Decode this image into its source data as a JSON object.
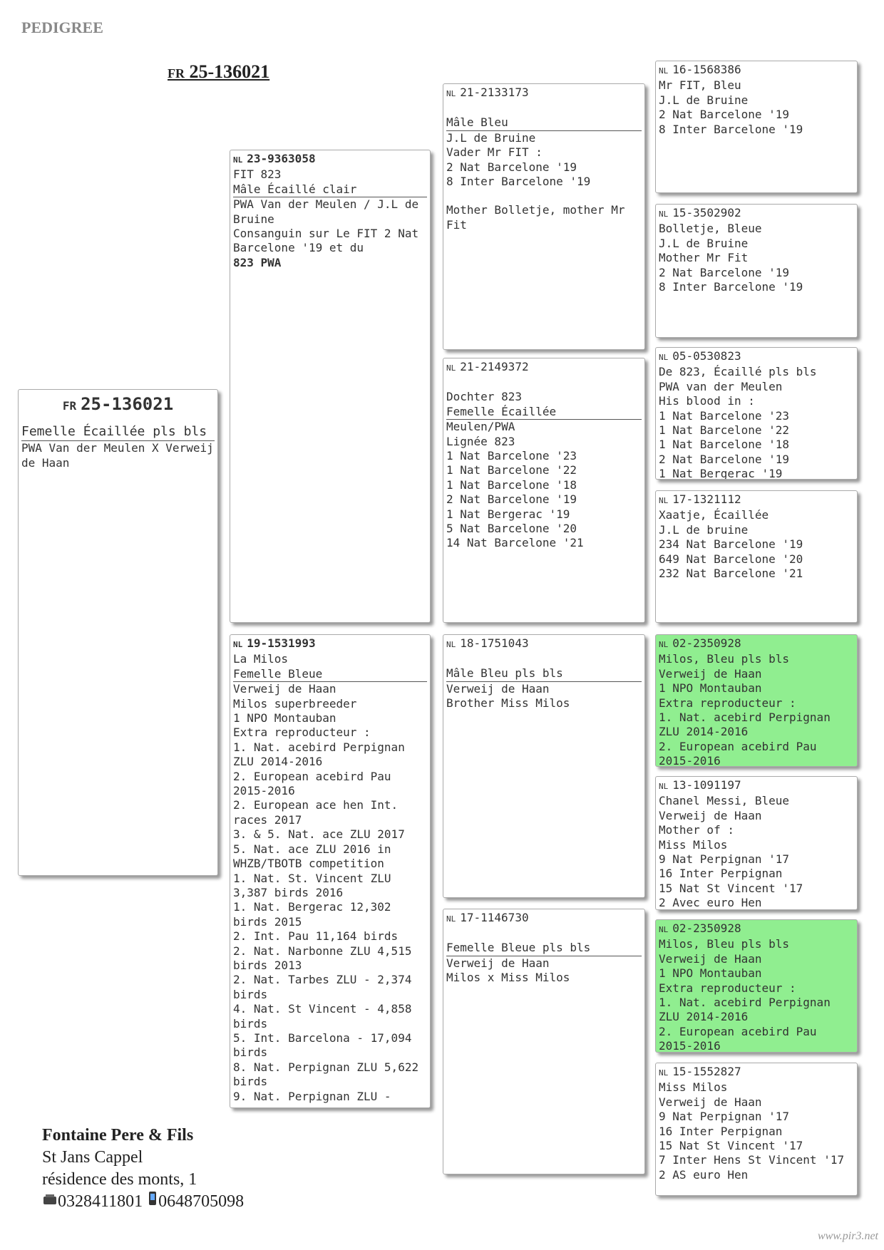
{
  "page_title": "PEDIGREE",
  "subject_heading": {
    "country": "FR",
    "ring": "25-136021"
  },
  "subject": {
    "country": "FR",
    "ring": "25-136021",
    "header": [
      "Femelle Écaillée pls bls"
    ],
    "details": [
      "PWA Van der Meulen X Verweij de Haan"
    ]
  },
  "parents": [
    {
      "country": "NL",
      "ring": "23-9363058",
      "header": [
        "FIT 823",
        "Mâle Écaillé clair"
      ],
      "details": [
        "PWA Van der Meulen / J.L de Bruine",
        "Consanguin sur Le FIT 2 Nat Barcelone '19 et du"
      ],
      "emphasis": "823 PWA"
    },
    {
      "country": "NL",
      "ring": "19-1531993",
      "header": [
        "La Milos",
        "Femelle Bleue"
      ],
      "details": [
        "Verweij de Haan",
        "Milos superbreeder",
        "1 NPO Montauban",
        "Extra reproducteur :",
        "1. Nat. acebird Perpignan ZLU 2014-2016",
        "2. European acebird Pau 2015-2016",
        "2. European ace hen Int. races 2017",
        "3. & 5. Nat. ace ZLU 2017",
        "5. Nat. ace ZLU 2016 in WHZB/TBOTB competition",
        "1. Nat. St. Vincent ZLU 3,387 birds 2016",
        "1. Nat. Bergerac 12,302 birds 2015",
        "2. Int. Pau 11,164 birds",
        "2. Nat. Narbonne ZLU 4,515 birds 2013",
        "2. Nat. Tarbes ZLU - 2,374 birds",
        "4. Nat. St Vincent - 4,858 birds",
        "5. Int. Barcelona - 17,094 birds",
        "8. Nat. Perpignan ZLU 5,622 birds",
        "9. Nat. Perpignan ZLU -"
      ]
    }
  ],
  "grandparents": [
    {
      "country": "NL",
      "ring": "21-2133173",
      "header": [
        "Mâle Bleu"
      ],
      "details": [
        "J.L de Bruine",
        "Vader Mr FIT :",
        "2 Nat Barcelone '19",
        "8 Inter Barcelone '19"
      ],
      "note": "Mother Bolletje, mother Mr Fit"
    },
    {
      "country": "NL",
      "ring": "21-2149372",
      "header": [
        "Dochter 823",
        "Femelle Écaillée"
      ],
      "details": [
        "Meulen/PWA",
        "Lignée 823",
        "1 Nat Barcelone '23",
        "1 Nat Barcelone '22",
        "1 Nat Barcelone '18",
        "2 Nat Barcelone '19",
        "1 Nat Bergerac '19",
        "5 Nat Barcelone '20",
        "14 Nat Barcelone '21"
      ]
    },
    {
      "country": "NL",
      "ring": "18-1751043",
      "header": [
        "Mâle Bleu pls bls"
      ],
      "details": [
        "Verweij de Haan",
        "Brother Miss Milos"
      ]
    },
    {
      "country": "NL",
      "ring": "17-1146730",
      "header": [
        "Femelle Bleue pls bls"
      ],
      "details": [
        "Verweij de Haan",
        "Milos x Miss Milos"
      ]
    }
  ],
  "great_grandparents": [
    {
      "country": "NL",
      "ring": "16-1568386",
      "details": [
        "Mr FIT, Bleu",
        "J.L de Bruine",
        "2 Nat Barcelone '19",
        "8 Inter Barcelone '19"
      ],
      "highlight": false
    },
    {
      "country": "NL",
      "ring": "15-3502902",
      "details": [
        "Bolletje, Bleue",
        "J.L de Bruine",
        "Mother Mr Fit",
        "2 Nat Barcelone '19",
        "8 Inter Barcelone '19"
      ],
      "highlight": false
    },
    {
      "country": "NL",
      "ring": "05-0530823",
      "details": [
        "De 823, Écaillé pls bls",
        "PWA van der Meulen",
        "His blood in :",
        "1 Nat Barcelone '23",
        "1 Nat Barcelone '22",
        "1 Nat Barcelone '18",
        "2 Nat Barcelone '19",
        "1 Nat Bergerac '19"
      ],
      "highlight": false
    },
    {
      "country": "NL",
      "ring": "17-1321112",
      "details": [
        "Xaatje, Écaillée",
        "J.L de bruine",
        "234 Nat Barcelone '19",
        "649 Nat Barcelone '20",
        "232 Nat Barcelone '21"
      ],
      "highlight": false
    },
    {
      "country": "NL",
      "ring": "02-2350928",
      "details": [
        "Milos, Bleu pls bls",
        "Verweij de Haan",
        "1 NPO Montauban",
        "Extra reproducteur :",
        "1. Nat. acebird Perpignan ZLU 2014-2016",
        "2. European acebird Pau 2015-2016"
      ],
      "highlight": true
    },
    {
      "country": "NL",
      "ring": "13-1091197",
      "details": [
        "Chanel Messi, Bleue",
        "Verweij de Haan",
        "Mother of :",
        "Miss Milos",
        "9 Nat Perpignan '17",
        "16 Inter Perpignan",
        "15 Nat St Vincent '17",
        "2 Avec euro Hen"
      ],
      "highlight": false
    },
    {
      "country": "NL",
      "ring": "02-2350928",
      "details": [
        "Milos, Bleu pls bls",
        "Verweij de Haan",
        "1 NPO Montauban",
        "Extra reproducteur :",
        "1. Nat. acebird Perpignan ZLU 2014-2016",
        "2. European acebird Pau 2015-2016"
      ],
      "highlight": true
    },
    {
      "country": "NL",
      "ring": "15-1552827",
      "details": [
        "Miss Milos",
        "Verweij de Haan",
        "9 Nat Perpignan '17",
        "16 Inter Perpignan",
        "15 Nat St Vincent '17",
        "7 Inter Hens St Vincent '17",
        "2 AS euro Hen"
      ],
      "highlight": false
    }
  ],
  "owner": {
    "name": "Fontaine Pere & Fils",
    "city": "St Jans Cappel",
    "address": "résidence des monts, 1",
    "phone": "0328411801",
    "mobile": "0648705098"
  },
  "watermark": "www.pir3.net"
}
